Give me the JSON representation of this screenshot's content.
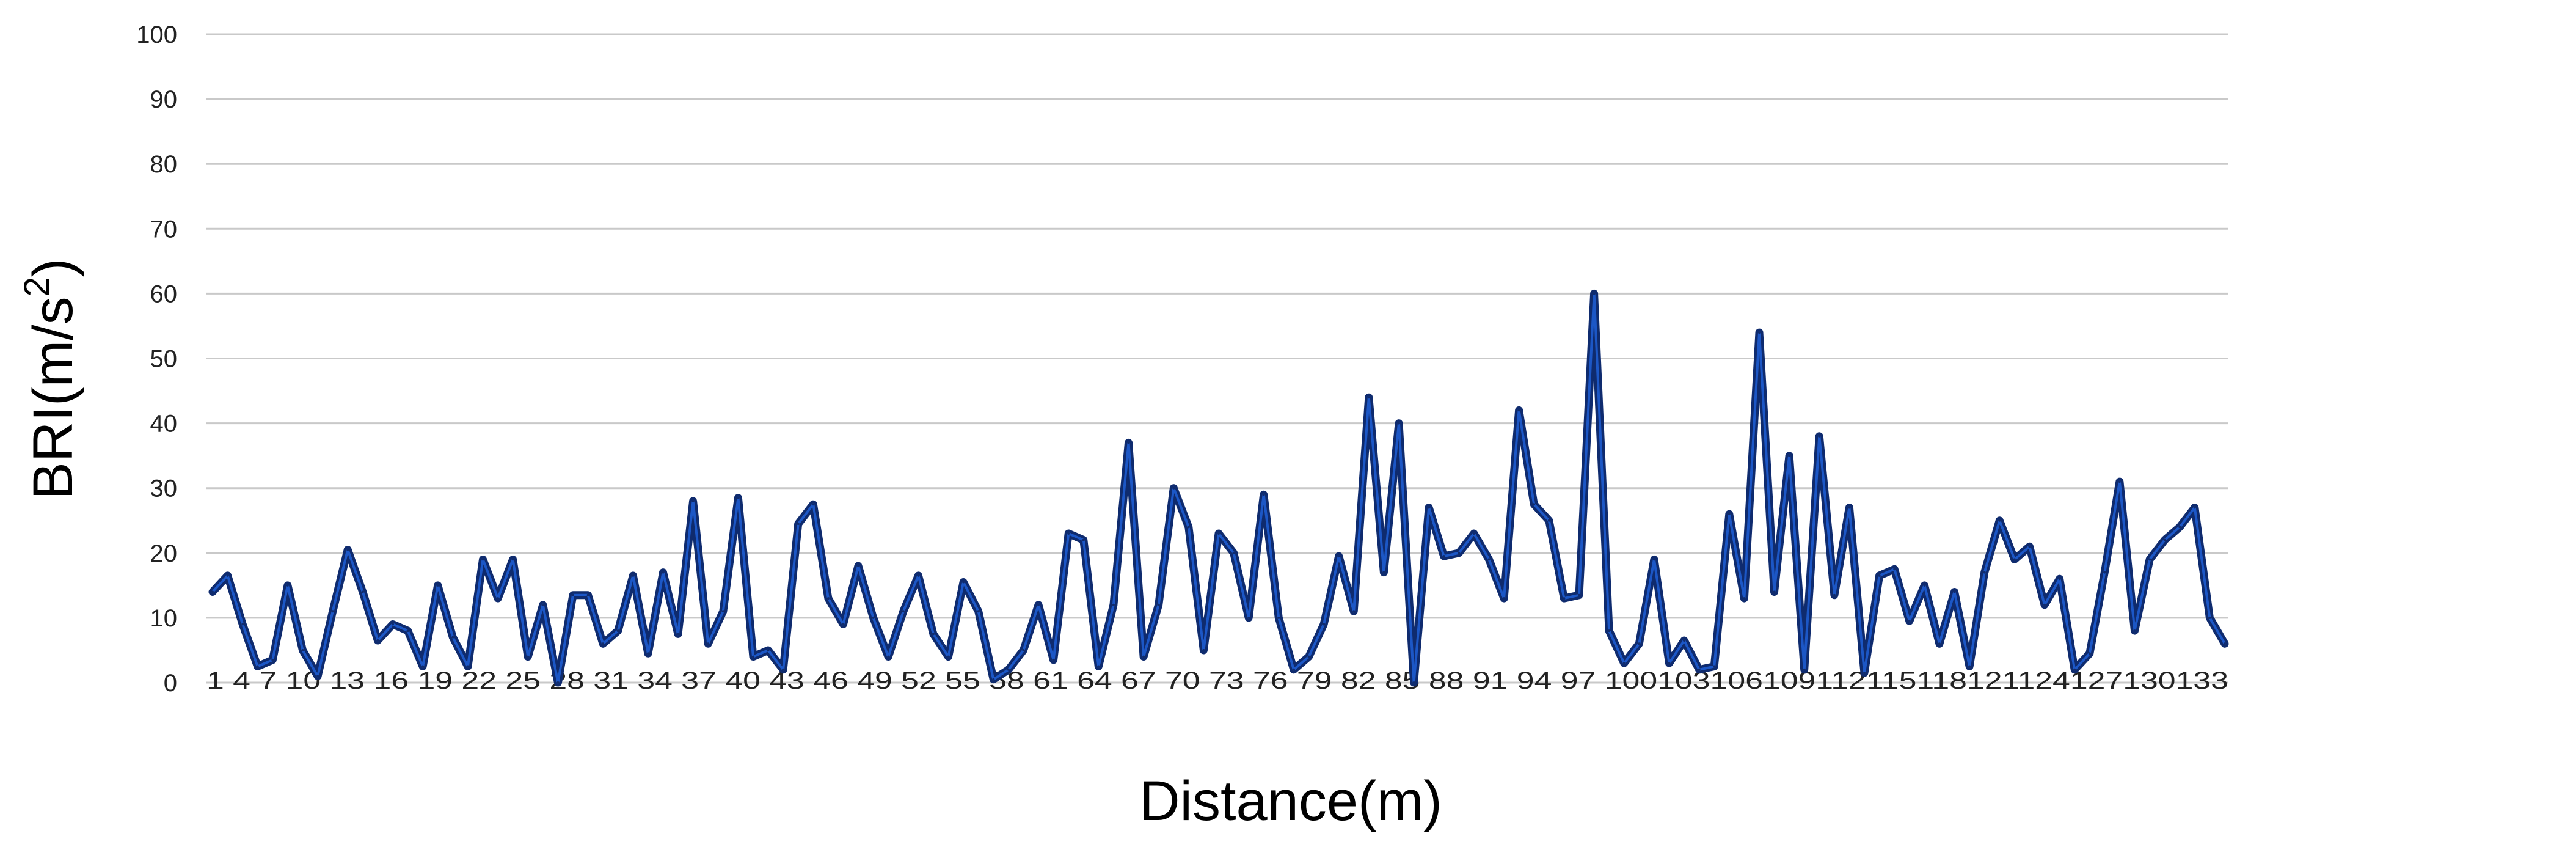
{
  "chart_data": {
    "type": "line",
    "xlabel": "Distance(m)",
    "ylabel": "BRI(m/s",
    "ylabel_superscript": "2",
    "ylabel_close": ")",
    "ylim": [
      0,
      100
    ],
    "yticks": [
      "0",
      "10",
      "20",
      "30",
      "40",
      "50",
      "60",
      "70",
      "80",
      "90",
      "100"
    ],
    "x_tick_labels": [
      "1",
      "4",
      "7",
      "10",
      "13",
      "16",
      "19",
      "22",
      "25",
      "28",
      "31",
      "34",
      "37",
      "40",
      "43",
      "46",
      "49",
      "52",
      "55",
      "58",
      "61",
      "64",
      "67",
      "70",
      "73",
      "76",
      "79",
      "82",
      "85",
      "88",
      "91",
      "94",
      "97",
      "100",
      "103",
      "106",
      "109",
      "112",
      "115",
      "118",
      "121",
      "124",
      "127",
      "130",
      "133"
    ],
    "x_tick_label_text": "1 4 7 10 13 16 19 22 25 28 31 34 37 40 43 46 49 52 55 58 61 64 67 70 73 76 79 82 85 88 91 94 97 100103106109112115118121124127130133",
    "grid": true,
    "legend": "none",
    "line_color": "#0f2b6e",
    "line_highlight_color": "#1e5fd6",
    "series": [
      {
        "x": [
          1,
          2,
          3,
          4,
          5,
          6,
          7,
          8,
          9,
          10,
          11,
          12,
          13,
          14,
          15,
          16,
          17,
          18,
          19,
          20,
          21,
          22,
          23,
          24,
          25,
          26,
          27,
          28,
          29,
          30,
          31,
          32,
          33,
          34,
          35,
          36,
          37,
          38,
          39,
          40,
          41,
          42,
          43,
          44,
          45,
          46,
          47,
          48,
          49,
          50,
          51,
          52,
          53,
          54,
          55,
          56,
          57,
          58,
          59,
          60,
          61,
          62,
          63,
          64,
          65,
          66,
          67,
          68,
          69,
          70,
          71,
          72,
          73,
          74,
          75,
          76,
          77,
          78,
          79,
          80,
          81,
          82,
          83,
          84,
          85,
          86,
          87,
          88,
          89,
          90,
          91,
          92,
          93,
          94,
          95,
          96,
          97,
          98,
          99,
          100,
          101,
          102,
          103,
          104,
          105,
          106,
          107,
          108,
          109,
          110,
          111,
          112,
          113,
          114,
          115,
          116,
          117,
          118,
          119,
          120,
          121,
          122,
          123,
          124,
          125,
          126,
          127,
          128,
          129,
          130,
          131,
          132,
          133,
          134,
          135
        ],
        "values": [
          14,
          16.5,
          9,
          2.5,
          3.5,
          15,
          5,
          1,
          11,
          20.5,
          14,
          6.5,
          9,
          8,
          2.5,
          15,
          7,
          2.5,
          19,
          13,
          19,
          4,
          12,
          0,
          13.5,
          13.5,
          6,
          8,
          16.5,
          4.5,
          17,
          7.5,
          28,
          6,
          11,
          28.5,
          4,
          5,
          2,
          24.5,
          27.5,
          13,
          9,
          18,
          10,
          4,
          11,
          16.5,
          7.5,
          4,
          15.5,
          11,
          0.5,
          2,
          5,
          12,
          3.5,
          23,
          22,
          2.5,
          12,
          37,
          4,
          12,
          30,
          24,
          5,
          23,
          20,
          10,
          29,
          10,
          2,
          4,
          9,
          19.5,
          11,
          44,
          17,
          40,
          0,
          27,
          19.5,
          20,
          23,
          19,
          13,
          42,
          27.5,
          25,
          13,
          13.5,
          60,
          8,
          3,
          6,
          19,
          3,
          6.5,
          2,
          2.5,
          26,
          13,
          54,
          14,
          35,
          2,
          38,
          13.5,
          27,
          1.5,
          16.5,
          17.5,
          9.5,
          15,
          6,
          14,
          2.5,
          17,
          25,
          19,
          21,
          12,
          16,
          2,
          4.5,
          17,
          31,
          8,
          19,
          22,
          24,
          27,
          10,
          6
        ]
      }
    ]
  }
}
